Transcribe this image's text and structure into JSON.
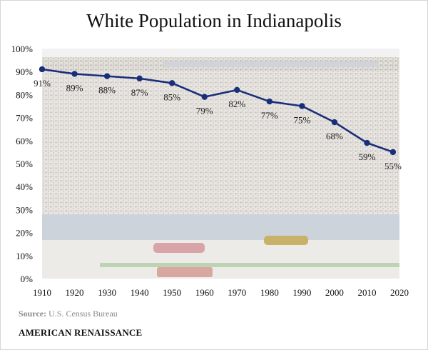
{
  "title": "White Population in Indianapolis",
  "source_label": "Source:",
  "source_text": "U.S. Census Bureau",
  "brand": "AMERICAN RENAISSANCE",
  "colors": {
    "line": "#1a2f7a",
    "marker": "#1a2f7a",
    "text": "#111111"
  },
  "chart_data": {
    "type": "line",
    "title": "White Population in Indianapolis",
    "xlabel": "",
    "ylabel": "",
    "x": [
      1910,
      1920,
      1930,
      1940,
      1950,
      1960,
      1970,
      1980,
      1990,
      2000,
      2010,
      2018
    ],
    "values": [
      91,
      89,
      88,
      87,
      85,
      79,
      82,
      77,
      75,
      68,
      59,
      55
    ],
    "data_labels": [
      "91%",
      "89%",
      "88%",
      "87%",
      "85%",
      "79%",
      "82%",
      "77%",
      "75%",
      "68%",
      "59%",
      "55%"
    ],
    "xticks": [
      "1910",
      "1920",
      "1930",
      "1940",
      "1950",
      "1960",
      "1970",
      "1980",
      "1990",
      "2000",
      "2010",
      "2020"
    ],
    "yticks": [
      "0%",
      "10%",
      "20%",
      "30%",
      "40%",
      "50%",
      "60%",
      "70%",
      "80%",
      "90%",
      "100%"
    ],
    "xlim": [
      1910,
      2020
    ],
    "ylim": [
      0,
      100
    ],
    "grid": false,
    "background": "photo of crowded racetrack grandstand"
  }
}
